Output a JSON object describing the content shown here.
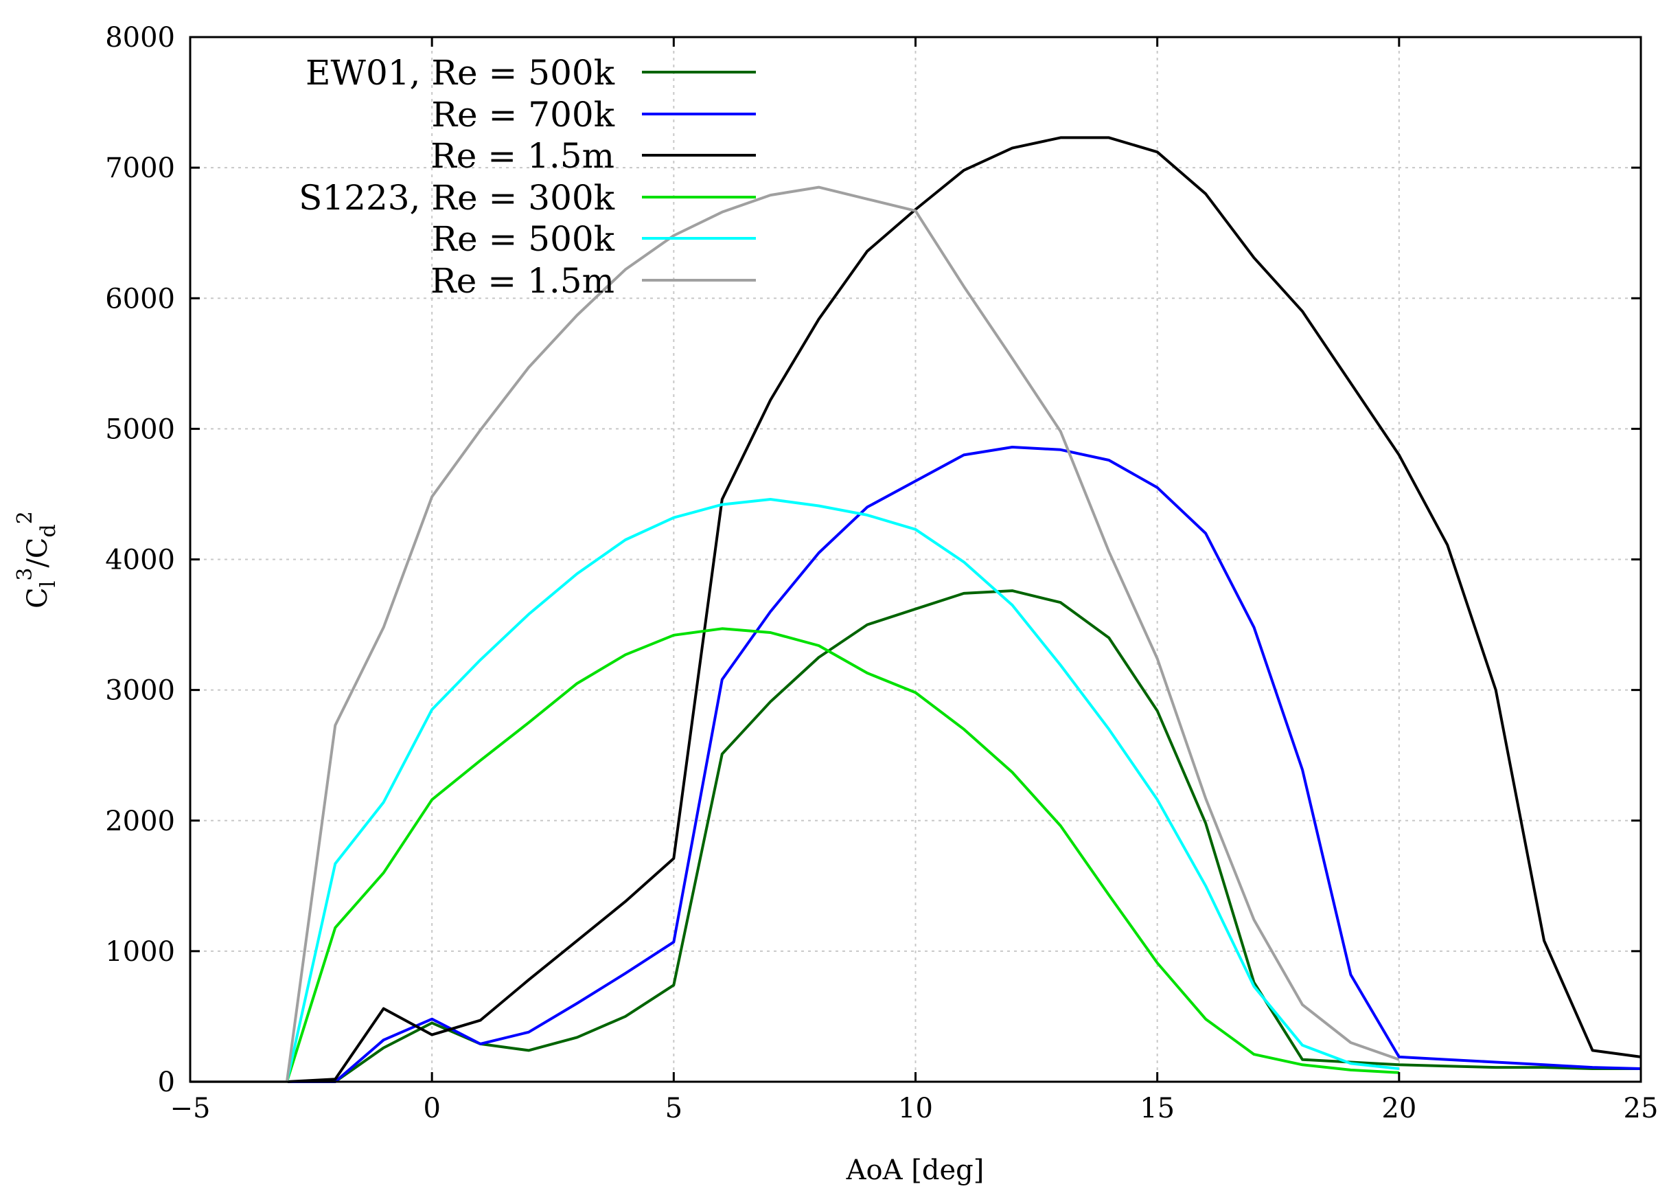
{
  "chart_data": {
    "type": "line",
    "title": "",
    "xlabel": "AoA [deg]",
    "ylabel": {
      "c1": "C",
      "s1": "l",
      "p1": "3",
      "slash": "/",
      "c2": "C",
      "s2": "d",
      "p2": "2"
    },
    "xlim": [
      -5,
      25
    ],
    "ylim": [
      0,
      8000
    ],
    "xticks": [
      -5,
      0,
      5,
      10,
      15,
      20,
      25
    ],
    "xtick_labels": [
      "−5",
      "0",
      "5",
      "10",
      "15",
      "20",
      "25"
    ],
    "yticks": [
      0,
      1000,
      2000,
      3000,
      4000,
      5000,
      6000,
      7000,
      8000
    ],
    "ytick_labels": [
      "0",
      "1000",
      "2000",
      "3000",
      "4000",
      "5000",
      "6000",
      "7000",
      "8000"
    ],
    "grid": true,
    "legend_position": "top-left",
    "series": [
      {
        "name": "EW01, Re = 500k",
        "color": "#006400",
        "x": [
          -5,
          -4,
          -3,
          -2,
          -1,
          0,
          1,
          2,
          3,
          4,
          5,
          6,
          7,
          8,
          9,
          10,
          11,
          12,
          13,
          14,
          15,
          16,
          17,
          18,
          19,
          20,
          21,
          22,
          23,
          24,
          25
        ],
        "y": [
          0,
          0,
          0,
          0,
          260,
          450,
          290,
          240,
          340,
          500,
          740,
          2510,
          2910,
          3250,
          3500,
          3620,
          3740,
          3760,
          3670,
          3400,
          2840,
          1980,
          760,
          170,
          150,
          130,
          120,
          110,
          110,
          100,
          100
        ]
      },
      {
        "name": "Re = 700k",
        "color": "#0000ff",
        "x": [
          -5,
          -4,
          -3,
          -2,
          -1,
          0,
          1,
          2,
          3,
          4,
          5,
          6,
          7,
          8,
          9,
          10,
          11,
          12,
          13,
          14,
          15,
          16,
          17,
          18,
          19,
          20,
          21,
          22,
          23,
          24,
          25
        ],
        "y": [
          0,
          0,
          0,
          0,
          320,
          480,
          290,
          380,
          600,
          830,
          1070,
          3080,
          3600,
          4050,
          4400,
          4600,
          4800,
          4860,
          4840,
          4760,
          4550,
          4200,
          3480,
          2390,
          820,
          190,
          170,
          150,
          130,
          110,
          100
        ]
      },
      {
        "name": "Re = 1.5m",
        "color": "#000000",
        "x": [
          -5,
          -4,
          -3,
          -2,
          -1,
          0,
          1,
          2,
          3,
          4,
          5,
          6,
          7,
          8,
          9,
          10,
          11,
          12,
          13,
          14,
          15,
          16,
          17,
          18,
          19,
          20,
          21,
          22,
          23,
          24,
          25
        ],
        "y": [
          0,
          0,
          0,
          20,
          560,
          360,
          470,
          780,
          1080,
          1380,
          1710,
          4460,
          5220,
          5840,
          6360,
          6680,
          6980,
          7150,
          7230,
          7230,
          7120,
          6800,
          6310,
          5900,
          5350,
          4800,
          4110,
          3000,
          1080,
          240,
          190
        ]
      },
      {
        "name": "S1223, Re = 300k",
        "color": "#00e000",
        "x": [
          -5,
          -4,
          -3,
          -2,
          -1,
          0,
          1,
          2,
          3,
          4,
          5,
          6,
          7,
          8,
          9,
          10,
          11,
          12,
          13,
          14,
          15,
          16,
          17,
          18,
          19,
          20
        ],
        "y": [
          0,
          0,
          0,
          1180,
          1600,
          2160,
          2460,
          2750,
          3050,
          3270,
          3420,
          3470,
          3440,
          3340,
          3130,
          2980,
          2700,
          2370,
          1960,
          1430,
          910,
          480,
          210,
          130,
          90,
          70
        ]
      },
      {
        "name": "Re = 500k",
        "color": "#00ffff",
        "x": [
          -5,
          -4,
          -3,
          -2,
          -1,
          0,
          1,
          2,
          3,
          4,
          5,
          6,
          7,
          8,
          9,
          10,
          11,
          12,
          13,
          14,
          15,
          16,
          17,
          18,
          19,
          20
        ],
        "y": [
          0,
          0,
          0,
          1670,
          2140,
          2850,
          3230,
          3580,
          3890,
          4150,
          4320,
          4420,
          4460,
          4410,
          4340,
          4230,
          3980,
          3650,
          3190,
          2700,
          2160,
          1500,
          730,
          280,
          140,
          100
        ]
      },
      {
        "name": "Re = 1.5m",
        "color": "#a0a0a0",
        "x": [
          -5,
          -4,
          -3,
          -2,
          -1,
          0,
          1,
          2,
          3,
          4,
          5,
          6,
          7,
          8,
          9,
          10,
          11,
          12,
          13,
          14,
          15,
          16,
          17,
          18,
          19,
          20
        ],
        "y": [
          0,
          0,
          0,
          2730,
          3480,
          4480,
          4990,
          5470,
          5870,
          6220,
          6480,
          6660,
          6790,
          6850,
          6760,
          6670,
          6090,
          5540,
          4980,
          4060,
          3240,
          2170,
          1240,
          590,
          300,
          170
        ]
      }
    ]
  }
}
